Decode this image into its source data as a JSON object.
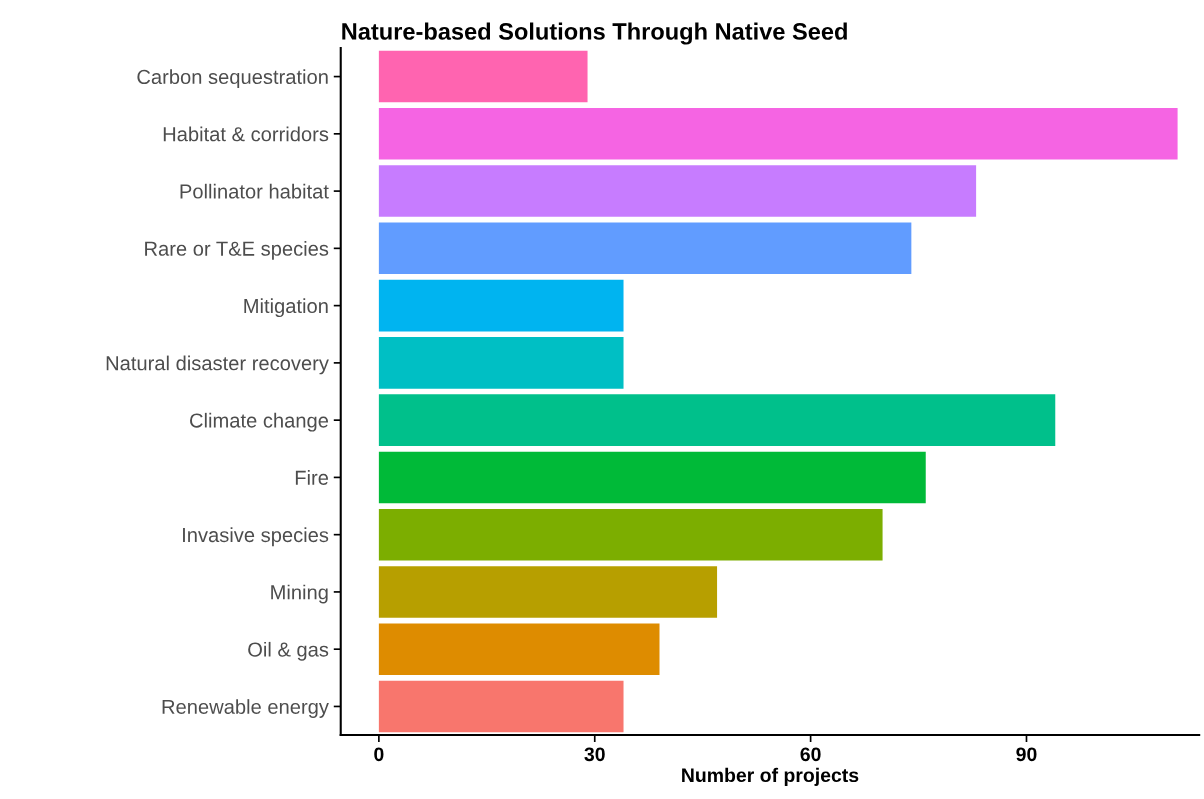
{
  "chart_data": {
    "type": "bar",
    "orientation": "horizontal",
    "title": "Nature-based Solutions Through Native Seed",
    "xlabel": "Number of projects",
    "categories": [
      "Carbon sequestration",
      "Habitat & corridors",
      "Pollinator habitat",
      "Rare or T&E species",
      "Mitigation",
      "Natural disaster recovery",
      "Climate change",
      "Fire",
      "Invasive species",
      "Mining",
      "Oil & gas",
      "Renewable energy"
    ],
    "values": [
      29,
      111,
      83,
      74,
      34,
      34,
      94,
      76,
      70,
      47,
      39,
      34
    ],
    "colors": [
      "#FF64B0",
      "#F564E3",
      "#C77CFF",
      "#619CFF",
      "#00B4F0",
      "#00BFC4",
      "#00C08B",
      "#00BA38",
      "#7CAE00",
      "#B79F00",
      "#DE8C00",
      "#F8766D"
    ],
    "xlim": [
      -5.3,
      114
    ],
    "xticks": [
      0,
      30,
      60,
      90
    ],
    "grid": false,
    "legend": false
  }
}
